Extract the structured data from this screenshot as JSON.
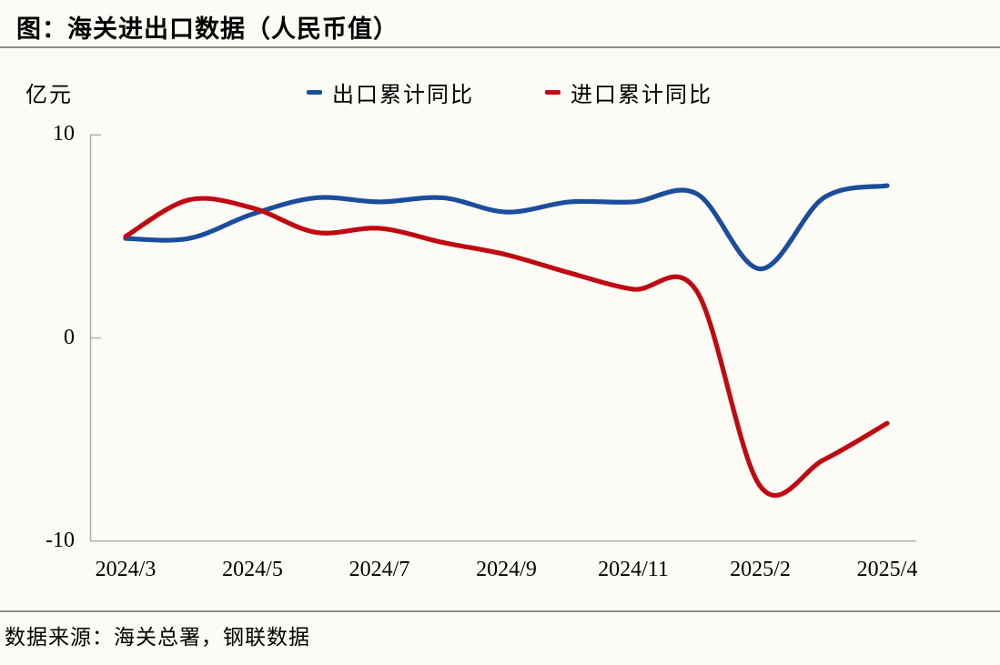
{
  "title": "图：海关进出口数据（人民币值）",
  "source": "数据来源：海关总署，钢联数据",
  "colors": {
    "export_line": "#1a4e9c",
    "import_line": "#c00a12",
    "axis": "#b0b0b0",
    "divider": "#8c8c8c",
    "background": "#fcfbf5",
    "text": "#000000"
  },
  "chart_data": {
    "type": "line",
    "title": "图：海关进出口数据（人民币值）",
    "unit_label": "亿元",
    "xlabel": "",
    "ylabel": "亿元",
    "ylim": [
      -10,
      10
    ],
    "y_ticks": [
      "10",
      "0",
      "-10"
    ],
    "y_tick_values": [
      10,
      0,
      -10
    ],
    "grid": "off",
    "legend_position": "top-center",
    "categories": [
      "2024/3",
      "2024/4",
      "2024/5",
      "2024/6",
      "2024/7",
      "2024/8",
      "2024/9",
      "2024/10",
      "2024/11",
      "2024/12",
      "2025/2",
      "2025/3",
      "2025/4"
    ],
    "x_tick_labels": [
      "2024/3",
      "2024/5",
      "2024/7",
      "2024/9",
      "2024/11",
      "2025/2",
      "2025/4"
    ],
    "x_tick_indices": [
      0,
      2,
      4,
      6,
      8,
      10,
      12
    ],
    "series": [
      {
        "name": "出口累计同比",
        "color": "#1a4e9c",
        "values": [
          4.9,
          4.9,
          6.1,
          6.9,
          6.7,
          6.9,
          6.2,
          6.7,
          6.7,
          7.1,
          3.4,
          6.9,
          7.5
        ]
      },
      {
        "name": "进口累计同比",
        "color": "#c00a12",
        "values": [
          5.0,
          6.8,
          6.4,
          5.2,
          5.4,
          4.7,
          4.1,
          3.2,
          2.4,
          2.3,
          -7.3,
          -6.0,
          -4.2
        ]
      }
    ]
  }
}
